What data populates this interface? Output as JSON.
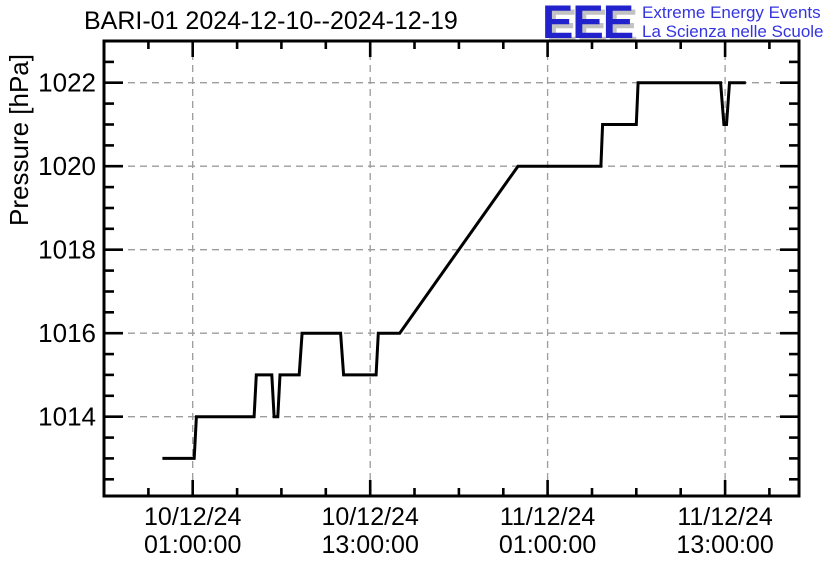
{
  "title": "BARI-01 2024-12-10--2024-12-19",
  "logo": {
    "letters": "EEE",
    "line1": "Extreme Energy Events",
    "line2": "La Scienza nelle Scuole",
    "letters_color": "#2222cc",
    "shadow_color": "#c2c2c2",
    "text_color": "#3434e0"
  },
  "chart_data": {
    "type": "line",
    "title": "BARI-01 2024-12-10--2024-12-19",
    "xlabel": "",
    "ylabel": "Pressure [hPa]",
    "line_color": "#000000",
    "line_width": 3,
    "grid": true,
    "grid_color": "#9c9c9c",
    "axis_color": "#000000",
    "x_axis": {
      "t_reference": "10/12/24 01:00:00",
      "unit": "hours since reference",
      "range_hours": [
        -6,
        41
      ],
      "major_tick_hours": [
        0,
        12,
        24,
        36
      ],
      "minor_step_hours": 3,
      "major_tick_labels": [
        {
          "line1": "10/12/24",
          "line2": "01:00:00"
        },
        {
          "line1": "10/12/24",
          "line2": "13:00:00"
        },
        {
          "line1": "11/12/24",
          "line2": "01:00:00"
        },
        {
          "line1": "11/12/24",
          "line2": "13:00:00"
        }
      ]
    },
    "y_axis": {
      "range": [
        1012.1,
        1023.0
      ],
      "major_ticks": [
        1014,
        1016,
        1018,
        1020,
        1022
      ],
      "major_tick_labels": [
        "1014",
        "1016",
        "1018",
        "1020",
        "1022"
      ],
      "minor_step": 0.5
    },
    "points": [
      [
        -2.05,
        1013
      ],
      [
        0.1,
        1013
      ],
      [
        0.25,
        1014
      ],
      [
        4.15,
        1014
      ],
      [
        4.3,
        1015
      ],
      [
        5.35,
        1015
      ],
      [
        5.5,
        1014
      ],
      [
        5.75,
        1014
      ],
      [
        5.9,
        1015
      ],
      [
        7.2,
        1015
      ],
      [
        7.4,
        1016
      ],
      [
        10.0,
        1016
      ],
      [
        10.2,
        1015
      ],
      [
        12.4,
        1015
      ],
      [
        12.55,
        1016
      ],
      [
        14.0,
        1016
      ],
      [
        22.0,
        1020
      ],
      [
        27.6,
        1020
      ],
      [
        27.72,
        1021
      ],
      [
        30.0,
        1021
      ],
      [
        30.12,
        1022
      ],
      [
        35.7,
        1022
      ],
      [
        35.92,
        1021
      ],
      [
        36.1,
        1021
      ],
      [
        36.3,
        1022
      ],
      [
        37.4,
        1022
      ]
    ]
  }
}
